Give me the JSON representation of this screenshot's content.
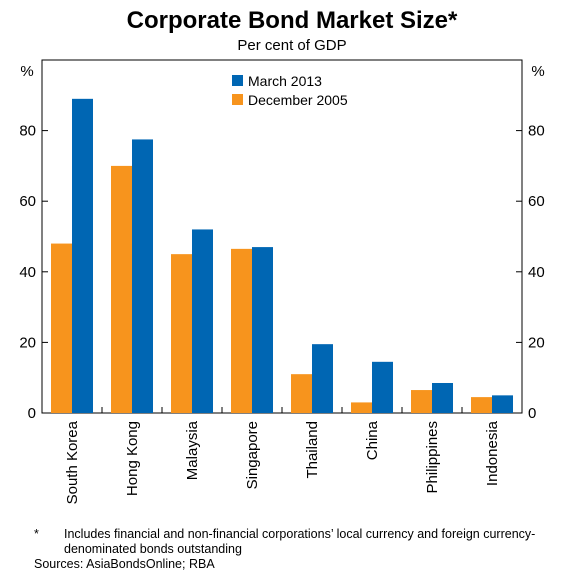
{
  "chart_data": {
    "type": "bar",
    "title": "Corporate Bond Market Size*",
    "subtitle": "Per cent of GDP",
    "ylabel_left": "%",
    "ylabel_right": "%",
    "ylim": [
      0,
      100
    ],
    "yticks": [
      0,
      20,
      40,
      60,
      80
    ],
    "categories": [
      "South Korea",
      "Hong Kong",
      "Malaysia",
      "Singapore",
      "Thailand",
      "China",
      "Philippines",
      "Indonesia"
    ],
    "series": [
      {
        "name": "December 2005",
        "color": "#F7941D",
        "values": [
          48,
          70,
          45,
          46.5,
          11,
          3,
          6.5,
          4.5
        ]
      },
      {
        "name": "March 2013",
        "color": "#0066B3",
        "values": [
          89,
          77.5,
          52,
          47,
          19.5,
          14.5,
          8.5,
          5
        ]
      }
    ],
    "legend": {
      "position": "top-center",
      "order": [
        "March 2013",
        "December 2005"
      ]
    },
    "grid": false
  },
  "notes": {
    "marker": "*",
    "footnote": "Includes financial and non-financial corporations’ local currency and foreign currency-denominated bonds outstanding",
    "sources": "Sources: AsiaBondsOnline; RBA"
  }
}
